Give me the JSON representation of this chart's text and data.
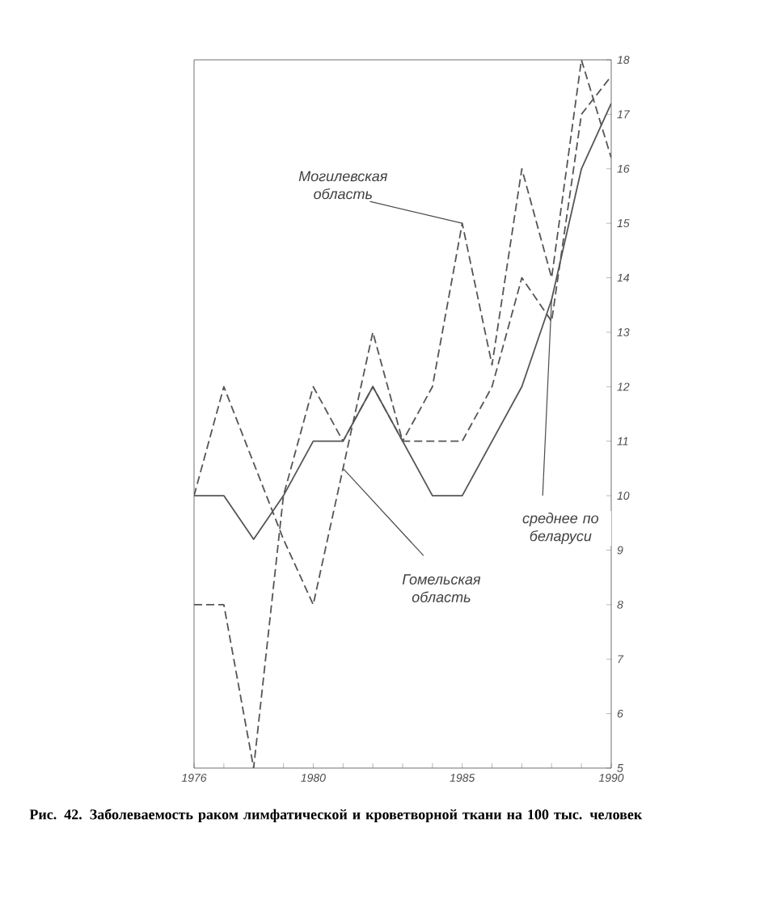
{
  "chart_data": {
    "type": "line",
    "x": [
      1976,
      1977,
      1978,
      1979,
      1980,
      1981,
      1982,
      1983,
      1984,
      1985,
      1986,
      1987,
      1988,
      1989,
      1990
    ],
    "series": [
      {
        "color": "#555555",
        "line_style": "dashed",
        "values": [
          8,
          8,
          5,
          10,
          12,
          11,
          12,
          11,
          12,
          15,
          12.4,
          16,
          14,
          18,
          16.2
        ]
      },
      {
        "color": "#555555",
        "line_style": "dashed",
        "values": [
          10,
          12,
          10.6,
          9.2,
          8,
          10.5,
          13,
          11,
          11,
          11,
          12,
          14,
          13.2,
          17,
          17.7
        ]
      },
      {
        "color": "#555555",
        "line_style": "solid",
        "values": [
          10,
          10,
          9.2,
          10,
          11,
          11,
          12,
          11,
          10,
          10,
          11,
          12,
          13.6,
          16,
          17.2
        ]
      }
    ],
    "xlim": [
      1976,
      1990
    ],
    "ylim": [
      5,
      18
    ],
    "xticks": [
      1976,
      {
        "value": 1977,
        "label": null
      },
      {
        "value": 1978,
        "label": null
      },
      {
        "value": 1979,
        "label": null
      },
      1980,
      {
        "value": 1981,
        "label": null
      },
      {
        "value": 1982,
        "label": null
      },
      {
        "value": 1983,
        "label": null
      },
      {
        "value": 1984,
        "label": null
      },
      1985,
      {
        "value": 1986,
        "label": null
      },
      {
        "value": 1987,
        "label": null
      },
      {
        "value": 1988,
        "label": null
      },
      {
        "value": 1989,
        "label": null
      },
      1990
    ],
    "yticks": [
      5,
      6,
      7,
      8,
      9,
      10,
      11,
      12,
      13,
      14,
      15,
      16,
      17,
      18
    ],
    "grid": false,
    "marker": "none",
    "annotations": [
      {
        "text": "Могилевская область",
        "x": 1985,
        "y": 15
      },
      {
        "text": "Гомельская область",
        "x": 1981,
        "y": 10.5
      },
      {
        "text": "среднее по беларуси",
        "x": 1988,
        "y": 13.6
      },
      "Рис. 42. Заболеваемость раком лимфатической и кроветворной ткани на 100 тыс. человек"
    ]
  }
}
